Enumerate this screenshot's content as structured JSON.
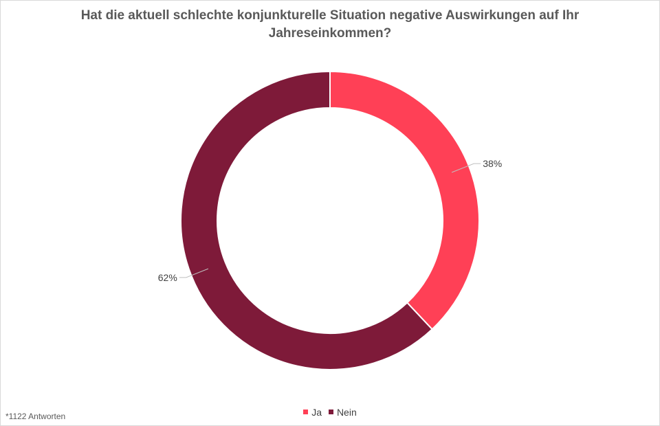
{
  "chart_data": {
    "type": "pie",
    "style": "donut",
    "title": "Hat die aktuell schlechte konjunkturelle Situation negative Auswirkungen auf Ihr Jahreseinkommen?",
    "categories": [
      "Ja",
      "Nein"
    ],
    "values": [
      38,
      62
    ],
    "value_labels": [
      "38%",
      "62%"
    ],
    "colors": [
      "#FF4056",
      "#7E1A39"
    ],
    "legend_position": "bottom"
  },
  "footnote": "*1122 Antworten"
}
